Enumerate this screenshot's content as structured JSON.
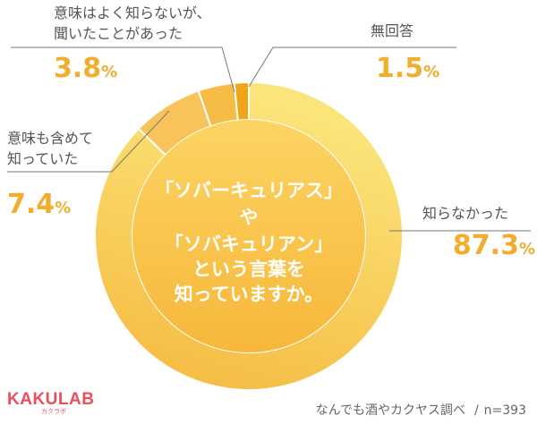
{
  "chart_data": {
    "type": "pie",
    "title_lines": [
      "「ソバーキュリアス」",
      "や",
      "「ソバキュリアン」",
      "という言葉を",
      "知っていますか。"
    ],
    "slices": [
      {
        "label_lines": [
          "知らなかった"
        ],
        "value": 87.3,
        "value_text": "87.3",
        "color": "#f7cf5c"
      },
      {
        "label_lines": [
          "意味も含めて",
          "知っていた"
        ],
        "value": 7.4,
        "value_text": "7.4",
        "color": "#f7c35a"
      },
      {
        "label_lines": [
          "意味はよく知らないが、",
          "聞いたことがあった"
        ],
        "value": 3.8,
        "value_text": "3.8",
        "color": "#f5bd45"
      },
      {
        "label_lines": [
          "無回答"
        ],
        "value": 1.5,
        "value_text": "1.5",
        "color": "#f0a418"
      }
    ],
    "unit": "%"
  },
  "logo": {
    "main": "KAKULAB",
    "sub": "カクラボ"
  },
  "footer": {
    "source": "なんでも酒やカクヤス調べ",
    "n": "n=393"
  }
}
